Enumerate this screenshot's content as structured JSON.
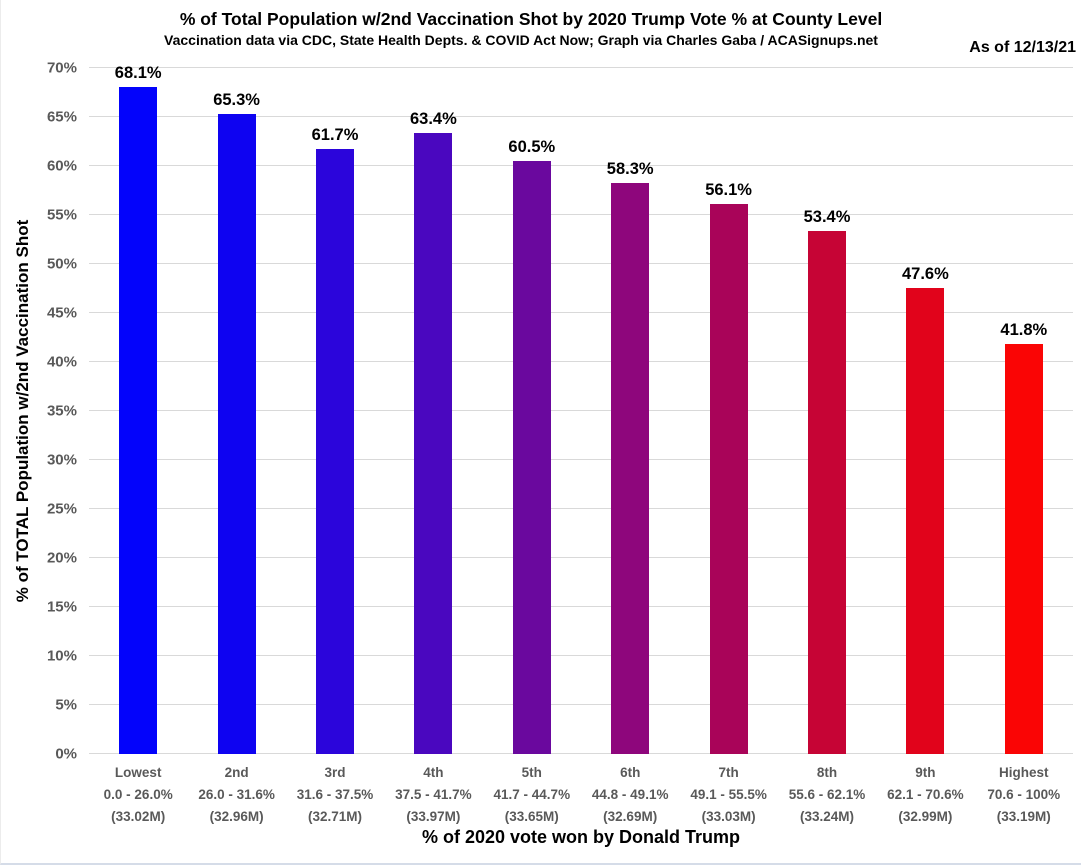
{
  "chart_data": {
    "type": "bar",
    "title": "% of Total Population w/2nd Vaccination Shot by 2020 Trump Vote % at County Level",
    "subtitle": "Vaccination data via CDC, State Health Depts. & COVID Act Now; Graph via Charles Gaba / ACASignups.net",
    "as_of": "As of 12/13/21",
    "xlabel": "% of 2020 vote won by Donald Trump",
    "ylabel": "% of TOTAL Population w/2nd Vaccination Shot",
    "ylim": [
      0,
      70
    ],
    "ytick_step": 5,
    "ytick_suffix": "%",
    "grid": true,
    "legend_position": "none",
    "categories": [
      "Lowest",
      "2nd",
      "3rd",
      "4th",
      "5th",
      "6th",
      "7th",
      "8th",
      "9th",
      "Highest"
    ],
    "category_vote_ranges": [
      "0.0 - 26.0%",
      "26.0 - 31.6%",
      "31.6 - 37.5%",
      "37.5 - 41.7%",
      "41.7 - 44.7%",
      "44.8 - 49.1%",
      "49.1 - 55.5%",
      "55.6 - 62.1%",
      "62.1 - 70.6%",
      "70.6 - 100%"
    ],
    "category_populations": [
      "(33.02M)",
      "(32.96M)",
      "(32.71M)",
      "(33.97M)",
      "(33.65M)",
      "(32.69M)",
      "(33.03M)",
      "(33.24M)",
      "(32.99M)",
      "(33.19M)"
    ],
    "values": [
      68.1,
      65.3,
      61.7,
      63.4,
      60.5,
      58.3,
      56.1,
      53.4,
      47.6,
      41.8
    ],
    "value_labels": [
      "68.1%",
      "65.3%",
      "61.7%",
      "63.4%",
      "60.5%",
      "58.3%",
      "56.1%",
      "53.4%",
      "47.6%",
      "41.8%"
    ],
    "bar_colors": [
      "#0303FB",
      "#0E03F1",
      "#2B05DB",
      "#4A07BF",
      "#6A089E",
      "#8E067C",
      "#A90459",
      "#C60435",
      "#E1031B",
      "#FA0505"
    ],
    "gridline_color": "#d9d9d9",
    "tick_label_color": "#595959",
    "text_color": "#000000",
    "background_color": "#ffffff"
  }
}
